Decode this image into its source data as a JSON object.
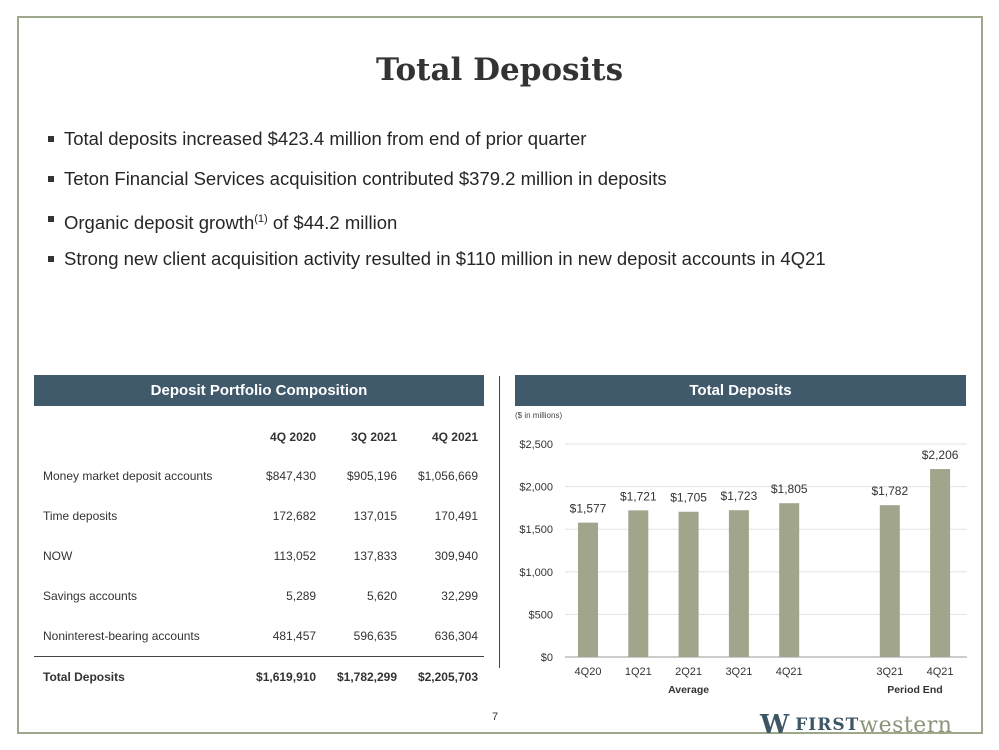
{
  "slide": {
    "title": "Total Deposits",
    "bullets": [
      {
        "text": "Total deposits increased $423.4 million from end of prior quarter"
      },
      {
        "text": "Teton Financial Services acquisition contributed $379.2 million in deposits"
      },
      {
        "pre": "Organic deposit growth",
        "sup": "(1)",
        "post": " of $44.2 million"
      },
      {
        "text": "Strong new client acquisition activity resulted in $110 million in new deposit accounts in 4Q21"
      }
    ],
    "page_number": "7"
  },
  "table_panel": {
    "title": "Deposit Portfolio Composition",
    "columns": [
      "4Q 2020",
      "3Q 2021",
      "4Q 2021"
    ],
    "rows": [
      {
        "label": "Money market deposit accounts",
        "values": [
          "$847,430",
          "$905,196",
          "$1,056,669"
        ]
      },
      {
        "label": "Time deposits",
        "values": [
          "172,682",
          "137,015",
          "170,491"
        ]
      },
      {
        "label": "NOW",
        "values": [
          "113,052",
          "137,833",
          "309,940"
        ]
      },
      {
        "label": "Savings accounts",
        "values": [
          "5,289",
          "5,620",
          "32,299"
        ]
      },
      {
        "label": "Noninterest-bearing accounts",
        "values": [
          "481,457",
          "596,635",
          "636,304"
        ]
      }
    ],
    "total": {
      "label": "Total Deposits",
      "values": [
        "$1,619,910",
        "$1,782,299",
        "$2,205,703"
      ]
    }
  },
  "chart_panel": {
    "title": "Total Deposits"
  },
  "chart_data": {
    "type": "bar",
    "title": "Total Deposits",
    "unit_note": "($ in millions)",
    "categories": [
      "4Q20",
      "1Q21",
      "2Q21",
      "3Q21",
      "4Q21",
      "3Q21",
      "4Q21"
    ],
    "groups": [
      "Average",
      "Average",
      "Average",
      "Average",
      "Average",
      "Period End",
      "Period End"
    ],
    "group_labels": [
      "Average",
      "Period End"
    ],
    "values": [
      1577,
      1721,
      1705,
      1723,
      1805,
      1782,
      2206
    ],
    "data_labels": [
      "$1,577",
      "$1,721",
      "$1,705",
      "$1,723",
      "$1,805",
      "$1,782",
      "$2,206"
    ],
    "ylim": [
      0,
      2500
    ],
    "yticks": [
      0,
      500,
      1000,
      1500,
      2000,
      2500
    ],
    "ytick_labels": [
      "$0",
      "$500",
      "$1,000",
      "$1,500",
      "$2,000",
      "$2,500"
    ],
    "grid": true,
    "bar_color": "#a0a58c",
    "xlabel": "",
    "ylabel": ""
  },
  "logo": {
    "mark": "W",
    "text_bold": "FIRST",
    "text_light": "western"
  },
  "colors": {
    "header_bg": "#405a6c",
    "frame": "#9da78c",
    "bar": "#a0a58c"
  }
}
